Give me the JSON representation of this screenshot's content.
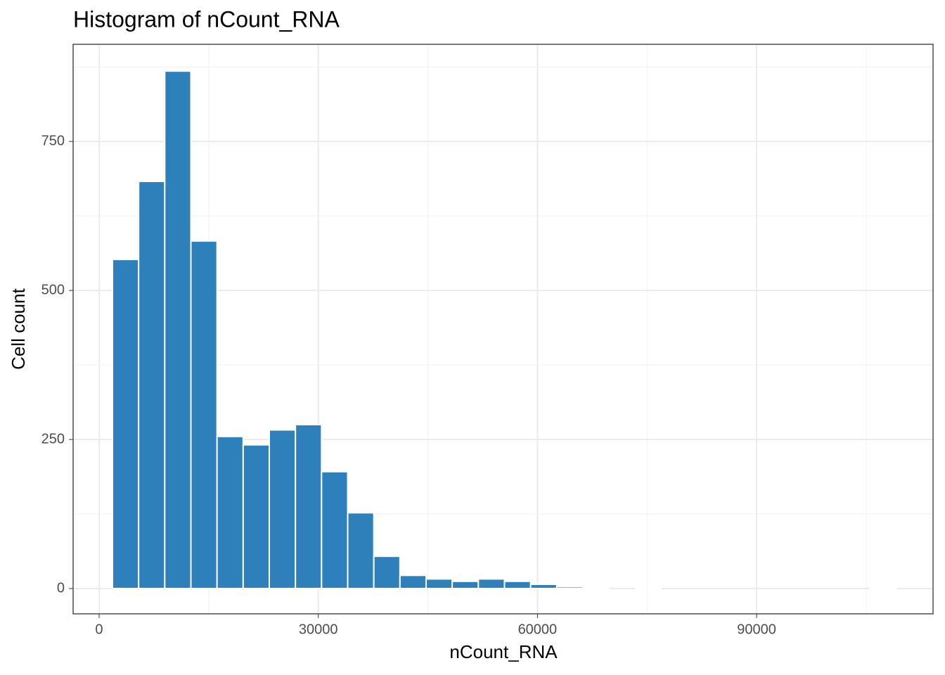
{
  "chart_data": {
    "type": "histogram",
    "title": "Histogram of nCount_RNA",
    "x_label": "nCount_RNA",
    "y_label": "Cell count",
    "bins": [
      1830,
      5407,
      8984,
      12561,
      16138,
      19715,
      23292,
      26869,
      30446,
      34023,
      37600,
      41177,
      44754,
      48331,
      51908,
      55485,
      59062,
      62639,
      66216,
      69793,
      73370,
      76947,
      80524,
      84101,
      87678,
      91255,
      94832,
      98409,
      101986,
      105563,
      109140
    ],
    "values": [
      552,
      683,
      868,
      583,
      255,
      241,
      266,
      275,
      196,
      127,
      54,
      22,
      16,
      12,
      16,
      12,
      7,
      3,
      1,
      0,
      1,
      0,
      0,
      0,
      0,
      0,
      0,
      0,
      0,
      1
    ],
    "color": "#2e80bb",
    "xlim": [
      -3560,
      114150
    ],
    "ylim": [
      -42.5,
      913
    ],
    "xticks": [
      0,
      30000,
      60000,
      90000
    ],
    "yticks": [
      0,
      250,
      500,
      750
    ],
    "x_minor_ticks": [
      15000,
      45000,
      75000,
      105000
    ],
    "y_minor_ticks": [
      125,
      375,
      625,
      875
    ],
    "grid": true
  }
}
